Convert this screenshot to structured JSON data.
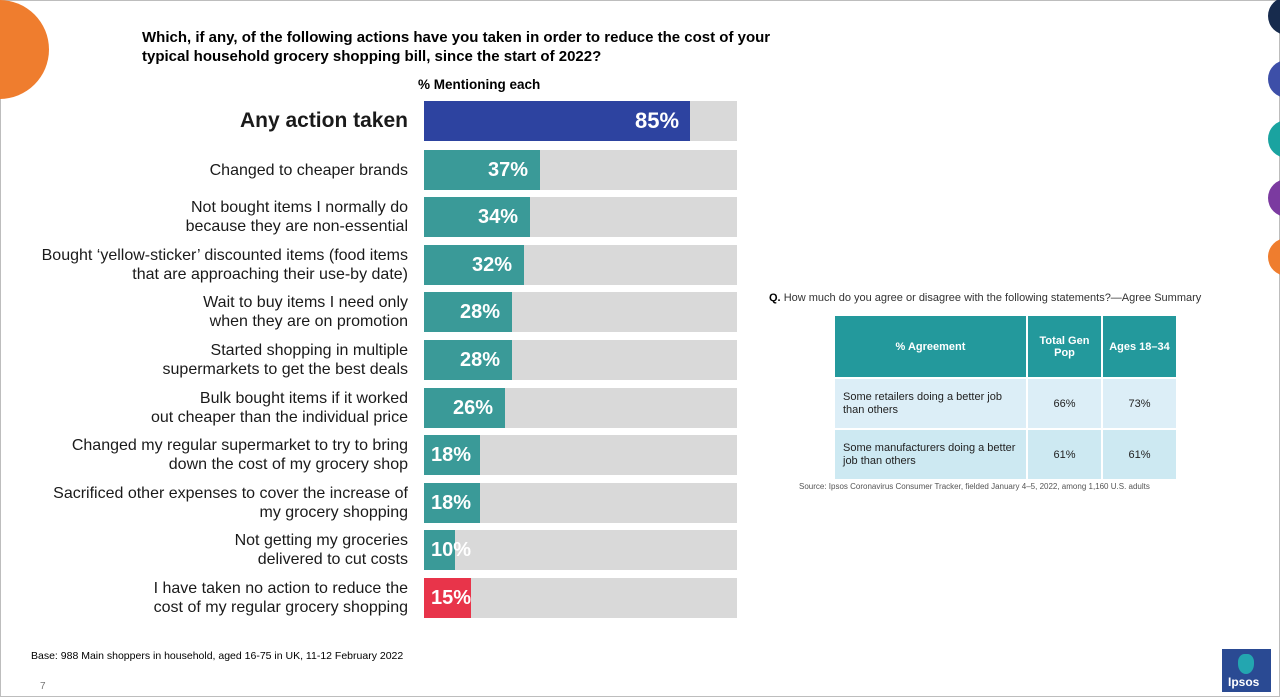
{
  "question": "Which, if any, of the following actions have you taken in order to reduce the cost of your typical household grocery shopping bill, since the start of 2022?",
  "subhead": "% Mentioning each",
  "base_note": "Base: 988 Main shoppers in household, aged 16-75 in UK, 11-12 February 2022",
  "page_number": "7",
  "colors": {
    "total": "#2d43a0",
    "action": "#3a9a98",
    "none": "#e8344a",
    "track": "#d9d9d9"
  },
  "chart_data": {
    "type": "bar",
    "orientation": "horizontal",
    "title": "% Mentioning each",
    "xlim": [
      0,
      100
    ],
    "categories": [
      "Any action taken",
      "Changed to cheaper brands",
      "Not bought items I normally do because they are non-essential",
      "Bought ‘yellow-sticker’ discounted items (food items that are approaching their use-by date)",
      "Wait to buy items I need only when they are on promotion",
      "Started shopping in multiple supermarkets to get the best deals",
      "Bulk bought items if it worked out cheaper than the individual price",
      "Changed my regular supermarket to try to bring down the cost of my grocery shop",
      "Sacrificed other expenses to cover the increase of my grocery shopping",
      "Not getting my groceries delivered to cut costs",
      "I have taken no action to reduce the cost of my regular grocery shopping"
    ],
    "display_labels": [
      "Any action taken",
      "Changed to cheaper brands",
      "Not bought items I normally do\nbecause they are non-essential",
      "Bought ‘yellow-sticker’ discounted items (food items\nthat are approaching their use-by date)",
      "Wait to buy items I need only\nwhen they are on promotion",
      "Started shopping in multiple\nsupermarkets to get the best deals",
      "Bulk bought items if it worked\nout cheaper than the individual price",
      "Changed my regular supermarket to try to bring\ndown the cost of my grocery shop",
      "Sacrificed other expenses to cover the increase of\nmy grocery shopping",
      "Not getting my groceries\ndelivered to cut costs",
      "I have taken no action to reduce the\ncost of my regular grocery shopping"
    ],
    "values": [
      85,
      37,
      34,
      32,
      28,
      28,
      26,
      18,
      18,
      10,
      15
    ],
    "value_labels": [
      "85%",
      "37%",
      "34%",
      "32%",
      "28%",
      "28%",
      "26%",
      "18%",
      "18%",
      "10%",
      "15%"
    ],
    "bar_colors": [
      "total",
      "action",
      "action",
      "action",
      "action",
      "action",
      "action",
      "action",
      "action",
      "action",
      "none"
    ]
  },
  "agreement": {
    "question_prefix": "Q.",
    "question": "How much do you agree or disagree with the following statements?—Agree Summary",
    "headers": [
      "% Agreement",
      "Total Gen Pop",
      "Ages 18–34"
    ],
    "rows": [
      [
        "Some retailers doing a better job than others",
        "66%",
        "73%"
      ],
      [
        "Some manufacturers doing a better job than others",
        "61%",
        "61%"
      ]
    ],
    "source": "Source: Ipsos Coronavirus Consumer Tracker, fielded January 4–5, 2022, among 1,160 U.S. adults"
  },
  "logo_text": "Ipsos"
}
